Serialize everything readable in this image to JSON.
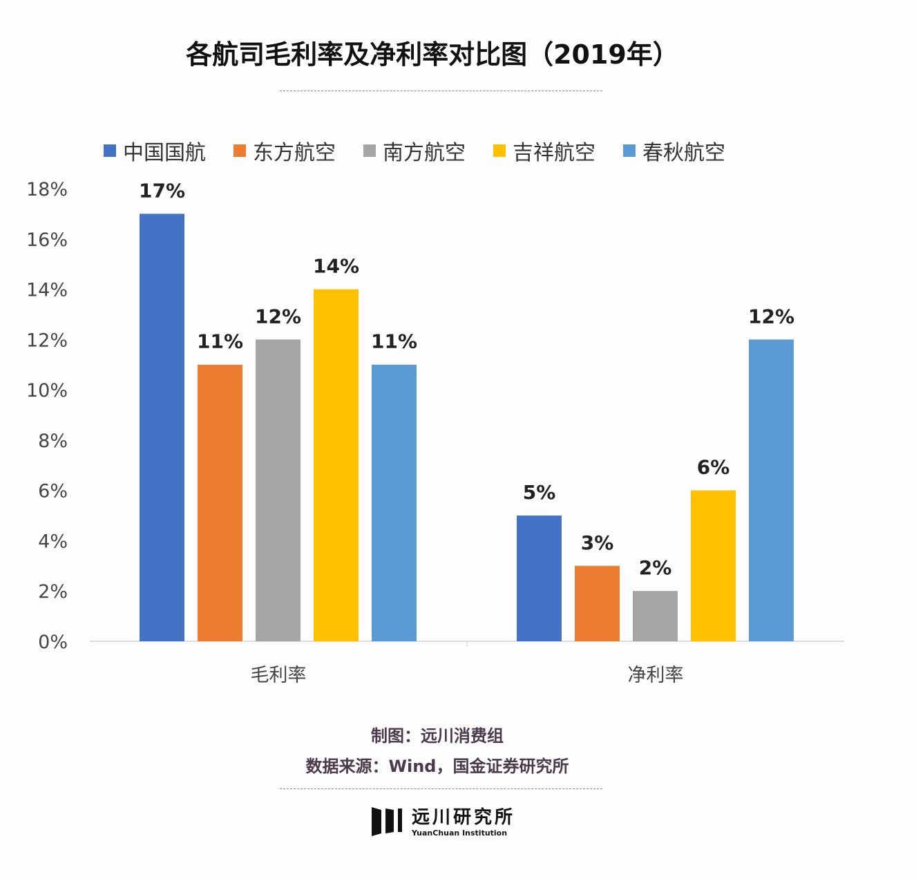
{
  "chart_data": {
    "type": "bar",
    "title": "各航司毛利率及净利率对比图（2019年）",
    "categories": [
      "毛利率",
      "净利率"
    ],
    "series": [
      {
        "name": "中国国航",
        "color": "#4472C4",
        "values": [
          17,
          5
        ]
      },
      {
        "name": "东方航空",
        "color": "#ED7D31",
        "values": [
          11,
          3
        ]
      },
      {
        "name": "南方航空",
        "color": "#A5A5A5",
        "values": [
          12,
          2
        ]
      },
      {
        "name": "吉祥航空",
        "color": "#FFC000",
        "values": [
          14,
          6
        ]
      },
      {
        "name": "春秋航空",
        "color": "#5B9BD5",
        "values": [
          11,
          12
        ]
      }
    ],
    "yticks": [
      "0%",
      "2%",
      "4%",
      "6%",
      "8%",
      "10%",
      "12%",
      "14%",
      "16%",
      "18%"
    ],
    "ylim": [
      0,
      18
    ],
    "unit": "%",
    "grid": false,
    "legend": "top",
    "xlabel": "",
    "ylabel": ""
  },
  "footer": {
    "credit": "制图：远川消费组",
    "source": "数据来源：Wind，国金证券研究所",
    "logo_cn": "远川研究所",
    "logo_en": "YuanChuan Institution"
  }
}
